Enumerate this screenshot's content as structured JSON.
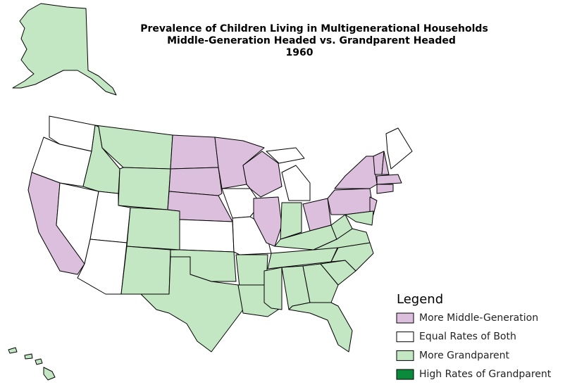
{
  "title": [
    "Prevalence of Children Living in Multigenerational Households",
    "Middle-Generation Headed vs. Grandparent Headed",
    "1960"
  ],
  "legend": {
    "title": "Legend",
    "items": [
      {
        "label": "More Middle-Generation",
        "color": "#dcbfdc"
      },
      {
        "label": "Equal Rates of Both",
        "color": "#ffffff"
      },
      {
        "label": "More Grandparent",
        "color": "#c3e6c3"
      },
      {
        "label": "High Rates of Grandparent",
        "color": "#0b8a3b"
      }
    ]
  }
}
